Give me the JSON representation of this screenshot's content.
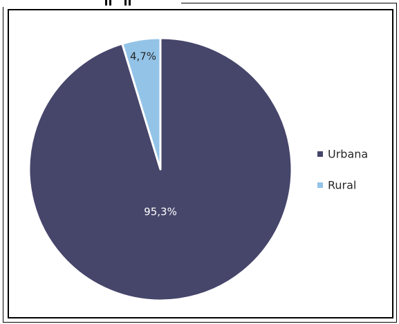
{
  "chart_data": {
    "type": "pie",
    "slices": [
      {
        "label": "Urbana",
        "value": 95.3,
        "display": "95,3%",
        "color": "#46456a"
      },
      {
        "label": "Rural",
        "value": 4.7,
        "display": "4,7%",
        "color": "#93c4e8"
      }
    ],
    "legend": {
      "placement": "right"
    },
    "label_colors": {
      "Urbana": "#ffffff",
      "Rural": "#262626"
    },
    "slice_border": "#ffffff"
  }
}
